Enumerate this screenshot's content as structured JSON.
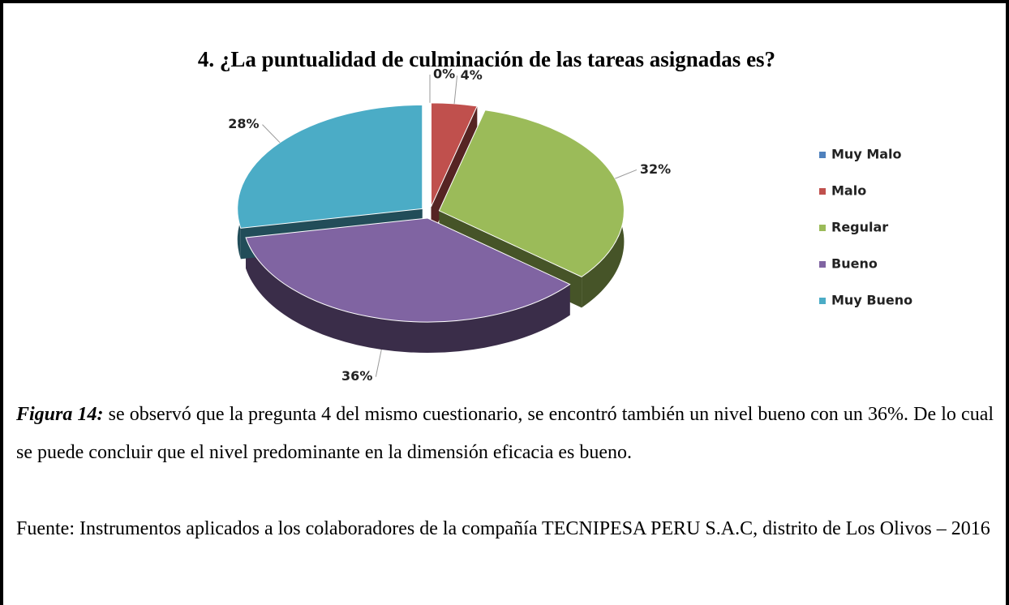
{
  "chart_data": {
    "type": "pie",
    "title": "4. ¿La puntualidad de culminación de las tareas asignadas es?",
    "categories": [
      "Muy Malo",
      "Malo",
      "Regular",
      "Bueno",
      "Muy Bueno"
    ],
    "values": [
      0,
      4,
      32,
      36,
      28
    ],
    "value_labels": [
      "0%",
      "4%",
      "32%",
      "36%",
      "28%"
    ],
    "colors": [
      "#4f81bd",
      "#c0504d",
      "#9bbb59",
      "#8064a2",
      "#4bacc6"
    ],
    "legend": "right"
  },
  "caption": {
    "label": "Figura 14:",
    "text": "se observó que la pregunta 4 del mismo cuestionario, se encontró también un nivel bueno con un 36%. De lo cual se puede concluir que el nivel predominante en la dimensión eficacia es bueno.",
    "source": "Fuente: Instrumentos aplicados a los colaboradores de la compañía TECNIPESA PERU S.A.C, distrito de Los Olivos – 2016"
  }
}
